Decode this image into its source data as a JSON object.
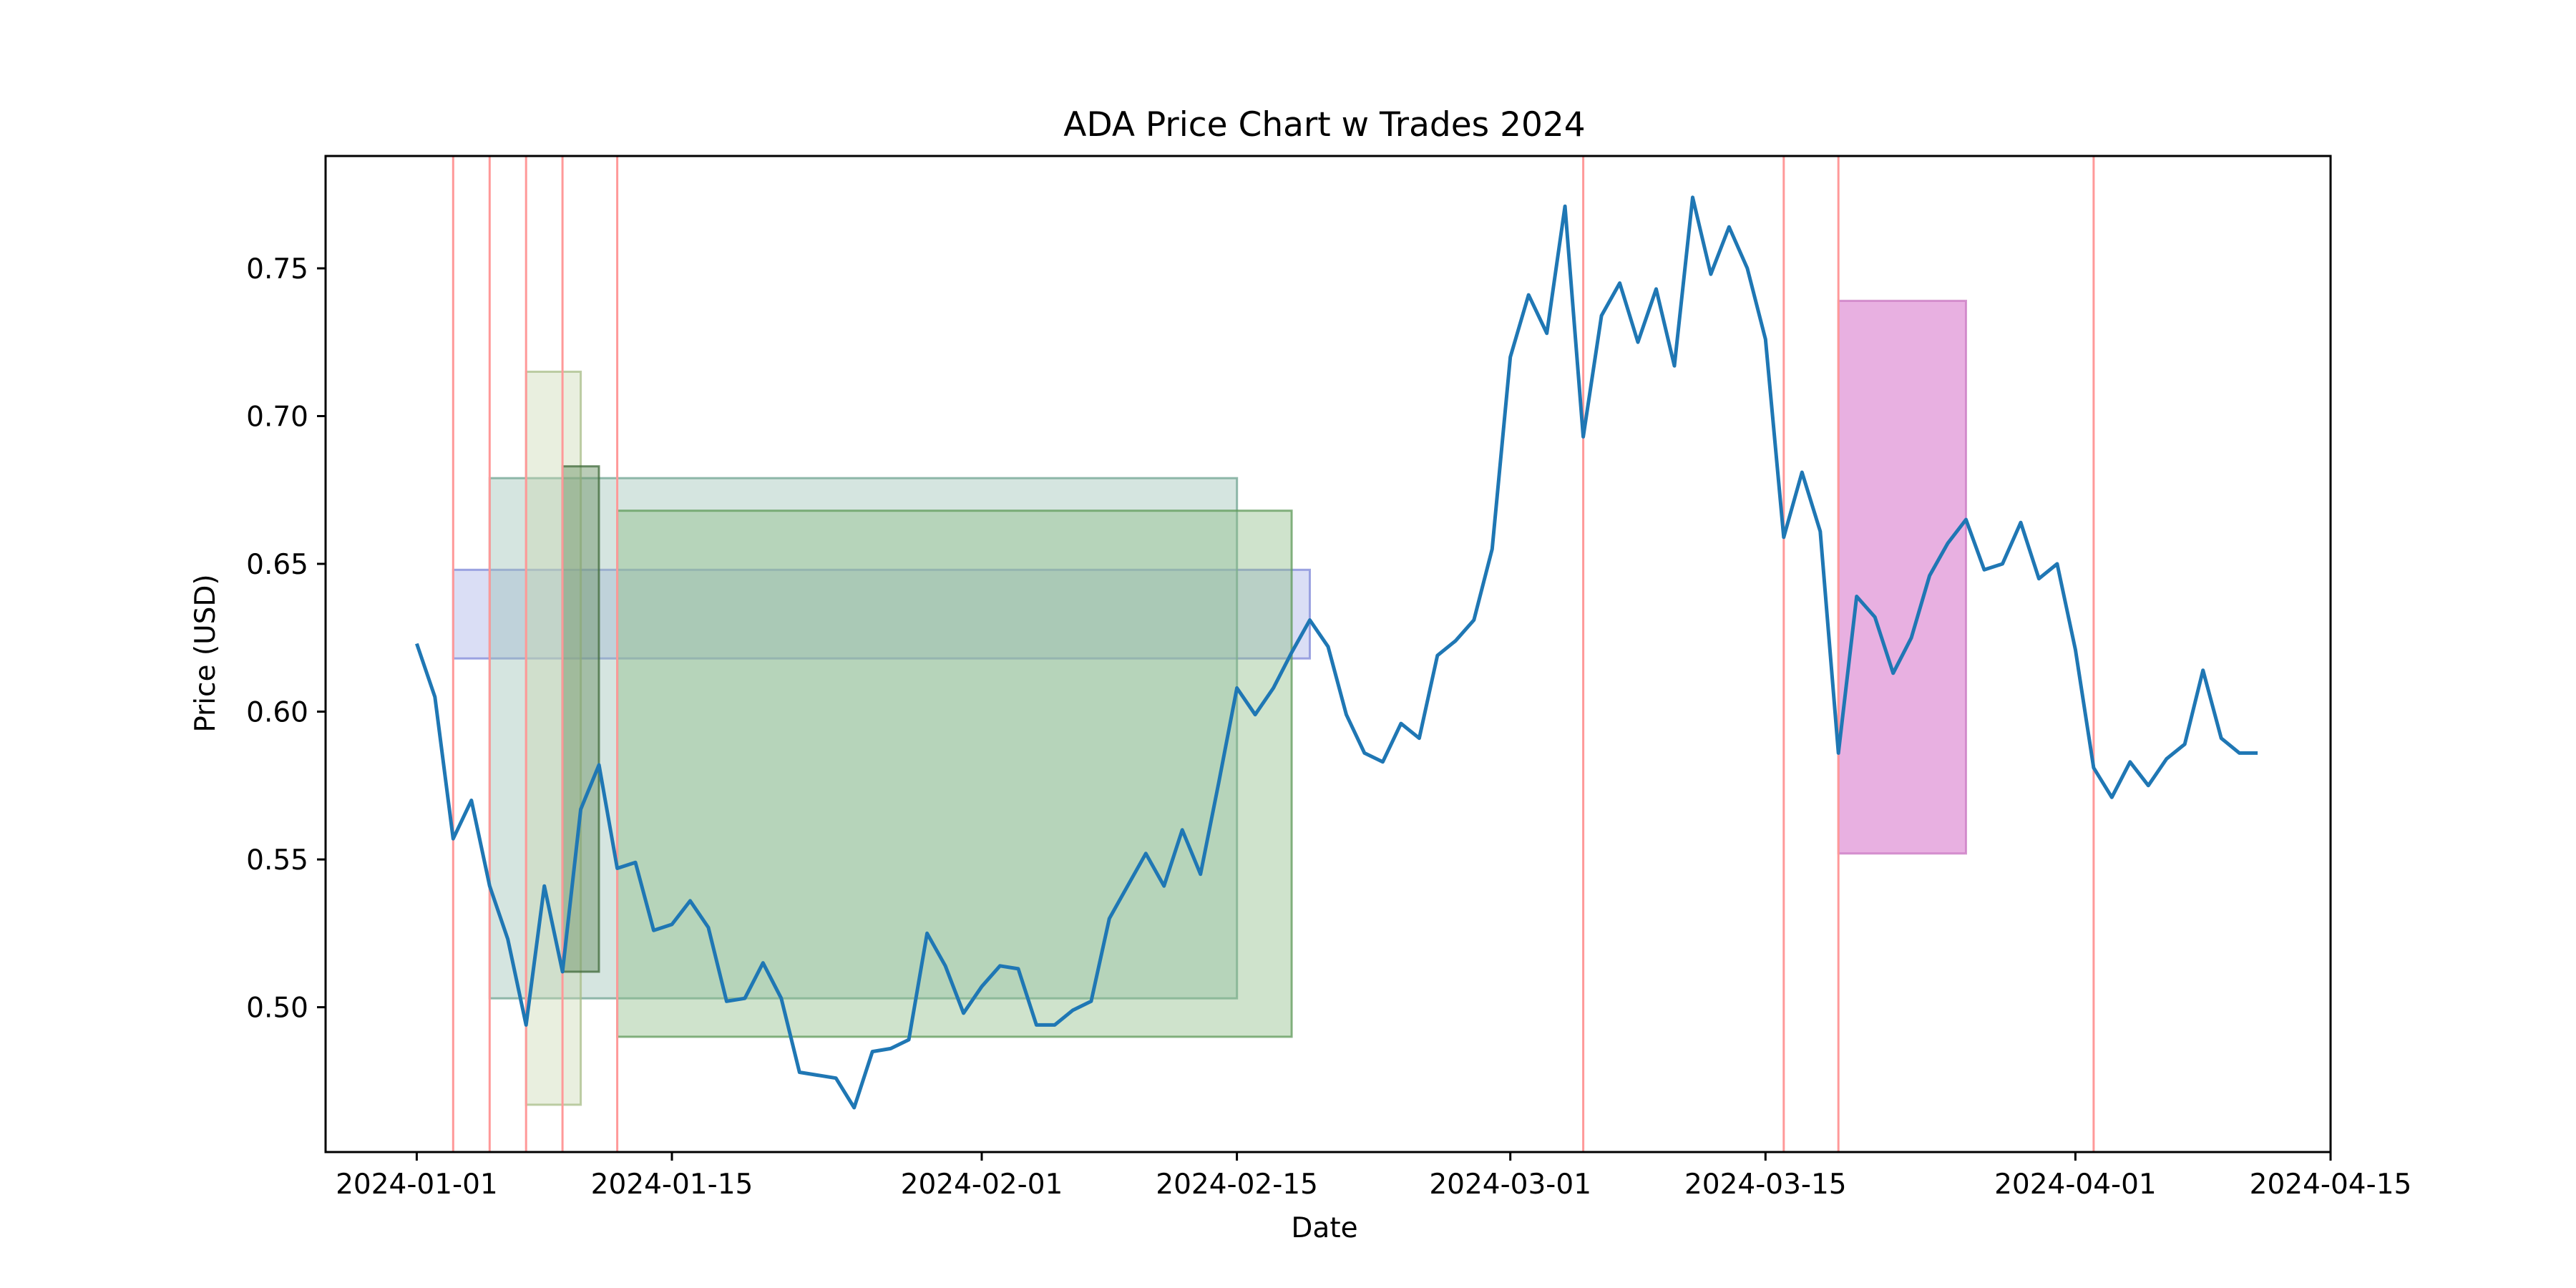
{
  "chart_data": {
    "type": "line",
    "title": "ADA Price Chart w Trades 2024",
    "xlabel": "Date",
    "ylabel": "Price (USD)",
    "xlim": [
      "2023-12-27",
      "2024-04-15"
    ],
    "ylim": [
      0.451,
      0.788
    ],
    "x_ticks": [
      "2024-01-01",
      "2024-01-15",
      "2024-02-01",
      "2024-02-15",
      "2024-03-01",
      "2024-03-15",
      "2024-04-01",
      "2024-04-15"
    ],
    "y_ticks": [
      0.5,
      0.55,
      0.6,
      0.65,
      0.7,
      0.75
    ],
    "y_tick_labels": [
      "0.50",
      "0.55",
      "0.60",
      "0.65",
      "0.70",
      "0.75"
    ],
    "grid": false,
    "legend": "none",
    "line_color": "#1f77b4",
    "series": [
      {
        "x": [
          "2024-01-01",
          "2024-01-02",
          "2024-01-03",
          "2024-01-04",
          "2024-01-05",
          "2024-01-06",
          "2024-01-07",
          "2024-01-08",
          "2024-01-09",
          "2024-01-10",
          "2024-01-11",
          "2024-01-12",
          "2024-01-13",
          "2024-01-14",
          "2024-01-15",
          "2024-01-16",
          "2024-01-17",
          "2024-01-18",
          "2024-01-19",
          "2024-01-20",
          "2024-01-21",
          "2024-01-22",
          "2024-01-23",
          "2024-01-24",
          "2024-01-25",
          "2024-01-26",
          "2024-01-27",
          "2024-01-28",
          "2024-01-29",
          "2024-01-30",
          "2024-01-31",
          "2024-02-01",
          "2024-02-02",
          "2024-02-03",
          "2024-02-04",
          "2024-02-05",
          "2024-02-06",
          "2024-02-07",
          "2024-02-08",
          "2024-02-09",
          "2024-02-10",
          "2024-02-11",
          "2024-02-12",
          "2024-02-13",
          "2024-02-14",
          "2024-02-15",
          "2024-02-16",
          "2024-02-17",
          "2024-02-18",
          "2024-02-19",
          "2024-02-20",
          "2024-02-21",
          "2024-02-22",
          "2024-02-23",
          "2024-02-24",
          "2024-02-25",
          "2024-02-26",
          "2024-02-27",
          "2024-02-28",
          "2024-02-29",
          "2024-03-01",
          "2024-03-02",
          "2024-03-03",
          "2024-03-04",
          "2024-03-05",
          "2024-03-06",
          "2024-03-07",
          "2024-03-08",
          "2024-03-09",
          "2024-03-10",
          "2024-03-11",
          "2024-03-12",
          "2024-03-13",
          "2024-03-14",
          "2024-03-15",
          "2024-03-16",
          "2024-03-17",
          "2024-03-18",
          "2024-03-19",
          "2024-03-20",
          "2024-03-21",
          "2024-03-22",
          "2024-03-23",
          "2024-03-24",
          "2024-03-25",
          "2024-03-26",
          "2024-03-27",
          "2024-03-28",
          "2024-03-29",
          "2024-03-30",
          "2024-03-31",
          "2024-04-01",
          "2024-04-02",
          "2024-04-03",
          "2024-04-04",
          "2024-04-05",
          "2024-04-06",
          "2024-04-07",
          "2024-04-08",
          "2024-04-09",
          "2024-04-10",
          "2024-04-11"
        ],
        "values": [
          0.623,
          0.605,
          0.557,
          0.57,
          0.541,
          0.523,
          0.494,
          0.541,
          0.512,
          0.567,
          0.582,
          0.547,
          0.549,
          0.526,
          0.528,
          0.536,
          0.527,
          0.502,
          0.503,
          0.515,
          0.503,
          0.478,
          0.477,
          0.476,
          0.466,
          0.485,
          0.486,
          0.489,
          0.525,
          0.514,
          0.498,
          0.507,
          0.514,
          0.513,
          0.494,
          0.494,
          0.499,
          0.502,
          0.53,
          0.541,
          0.552,
          0.541,
          0.56,
          0.545,
          0.576,
          0.608,
          0.599,
          0.608,
          0.62,
          0.631,
          0.622,
          0.599,
          0.586,
          0.583,
          0.596,
          0.591,
          0.619,
          0.624,
          0.631,
          0.655,
          0.72,
          0.741,
          0.728,
          0.771,
          0.693,
          0.734,
          0.745,
          0.725,
          0.743,
          0.717,
          0.774,
          0.748,
          0.764,
          0.75,
          0.726,
          0.659,
          0.681,
          0.661,
          0.586,
          0.639,
          0.632,
          0.613,
          0.625,
          0.646,
          0.657,
          0.665,
          0.648,
          0.65,
          0.664,
          0.645,
          0.65,
          0.621,
          0.581,
          0.571,
          0.583,
          0.575,
          0.584,
          0.589,
          0.614,
          0.591,
          0.586,
          0.586
        ]
      }
    ],
    "trade_markers": {
      "color": "#ff9999",
      "dates": [
        "2024-01-03",
        "2024-01-05",
        "2024-01-07",
        "2024-01-09",
        "2024-01-12",
        "2024-03-05",
        "2024-03-16",
        "2024-03-19",
        "2024-04-02"
      ]
    },
    "trade_ranges": [
      {
        "start": "2024-01-03",
        "end": "2024-02-19",
        "low": 0.618,
        "high": 0.648,
        "fill": "#a8b0e8",
        "edge": "#7f88d8",
        "opacity": 0.42
      },
      {
        "start": "2024-01-05",
        "end": "2024-02-15",
        "low": 0.503,
        "high": 0.679,
        "fill": "#9ac2b4",
        "edge": "#6fa392",
        "opacity": 0.42
      },
      {
        "start": "2024-01-07",
        "end": "2024-01-10",
        "low": 0.467,
        "high": 0.715,
        "fill": "#c8d8b0",
        "edge": "#a8bd88",
        "opacity": 0.4
      },
      {
        "start": "2024-01-09",
        "end": "2024-01-11",
        "low": 0.512,
        "high": 0.683,
        "fill": "#6f9468",
        "edge": "#3f6a3a",
        "opacity": 0.48
      },
      {
        "start": "2024-01-12",
        "end": "2024-02-18",
        "low": 0.49,
        "high": 0.668,
        "fill": "#8dbc86",
        "edge": "#5f9a59",
        "opacity": 0.42
      },
      {
        "start": "2024-03-19",
        "end": "2024-03-26",
        "low": 0.552,
        "high": 0.739,
        "fill": "#e7acdf",
        "edge": "#c978c1",
        "opacity": 0.95
      }
    ]
  }
}
